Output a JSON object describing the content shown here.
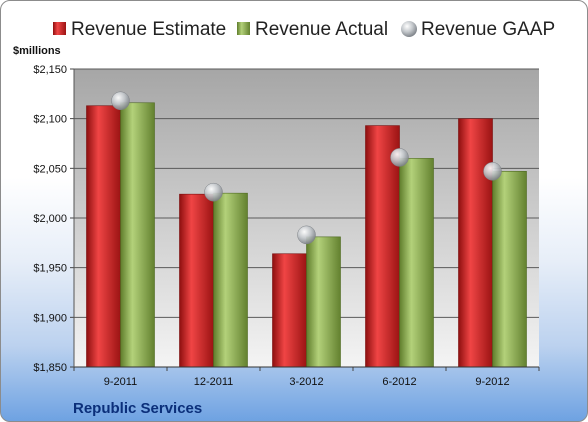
{
  "chart_data": {
    "type": "bar",
    "categories": [
      "9-2011",
      "12-2011",
      "3-2012",
      "6-2012",
      "9-2012"
    ],
    "series": [
      {
        "name": "Revenue Estimate",
        "values": [
          2113,
          2024,
          1964,
          2093,
          2100
        ],
        "color": "#d01c1c"
      },
      {
        "name": "Revenue Actual",
        "values": [
          2116,
          2025,
          1981,
          2060,
          2047
        ],
        "color": "#8db04a"
      },
      {
        "name": "Revenue GAAP",
        "values": [
          2118,
          2026,
          1983,
          2061,
          2047
        ],
        "color": "#b4b8bd",
        "marker": "sphere"
      }
    ],
    "ylabel": "$millions",
    "ylim": [
      1850,
      2150
    ],
    "yticks": [
      1850,
      1900,
      1950,
      2000,
      2050,
      2100,
      2150
    ],
    "ytick_labels": [
      "$1,850",
      "$1,900",
      "$1,950",
      "$2,000",
      "$2,050",
      "$2,100",
      "$2,150"
    ],
    "grid": true,
    "legend_position": "top",
    "plot_background": "gradient-gray",
    "footer": "Republic Services"
  }
}
